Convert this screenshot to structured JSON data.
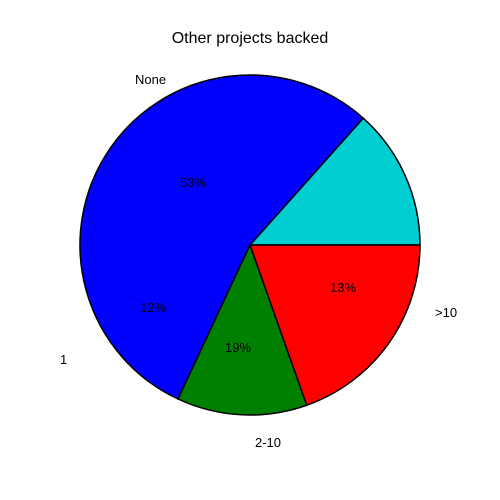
{
  "chart": {
    "type": "pie",
    "title": "Other projects backed",
    "title_fontsize": 16,
    "background_color": "#ffffff",
    "edge_color": "#000000",
    "label_fontsize": 13,
    "start_angle_deg": 0,
    "slices": [
      {
        "label": ">10",
        "value": 13,
        "color": "#00ced1",
        "pct_text": "13%"
      },
      {
        "label": "None",
        "value": 53,
        "color": "#0000ff",
        "pct_text": "53%"
      },
      {
        "label": "1",
        "value": 12,
        "color": "#008000",
        "pct_text": "12%"
      },
      {
        "label": "2-10",
        "value": 19,
        "color": "#ff0000",
        "pct_text": "19%"
      }
    ]
  }
}
